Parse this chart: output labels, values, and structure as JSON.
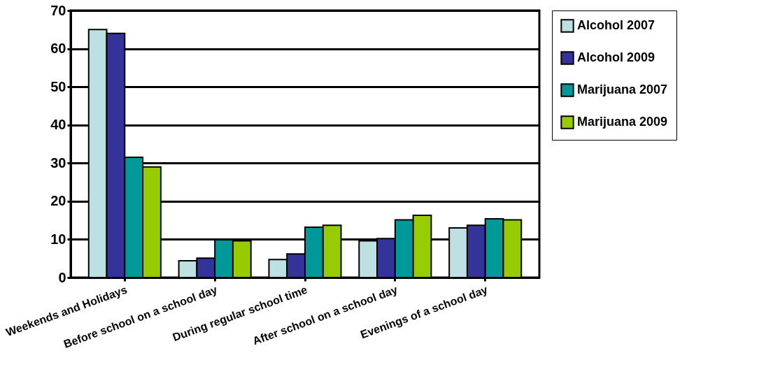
{
  "chart_data": {
    "type": "bar",
    "categories": [
      "Weekends and Holidays",
      "Before school on a school day",
      "During regular school time",
      "After school on a school day",
      "Evenings of a school day"
    ],
    "series": [
      {
        "name": "Alcohol 2007",
        "color": "#bde0e3",
        "values": [
          65,
          4.4,
          4.7,
          9.6,
          13
        ]
      },
      {
        "name": "Alcohol 2009",
        "color": "#333399",
        "values": [
          64,
          5.1,
          6.2,
          10.2,
          13.7
        ]
      },
      {
        "name": "Marijuana 2007",
        "color": "#009999",
        "values": [
          31.5,
          9.9,
          13.2,
          15.1,
          15.4
        ]
      },
      {
        "name": "Marijuana 2009",
        "color": "#99cc00",
        "values": [
          29,
          9.6,
          13.7,
          16.3,
          15.1
        ]
      }
    ],
    "ylim": [
      0,
      70
    ],
    "yticks": [
      0,
      10,
      20,
      30,
      40,
      50,
      60,
      70
    ],
    "grid": "y",
    "legend": "right"
  }
}
